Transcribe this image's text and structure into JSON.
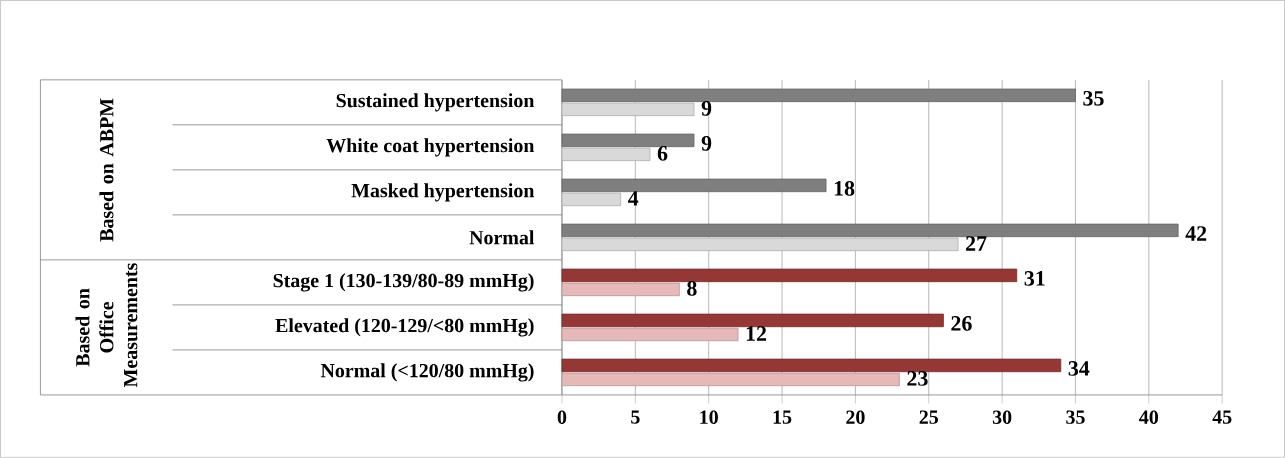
{
  "chart_data": {
    "type": "bar",
    "orientation": "horizontal",
    "categories": [
      "Sustained hypertension",
      "White coat hypertension",
      "Masked hypertension",
      "Normal",
      "Stage 1 (130-139/80-89 mmHg)",
      "Elevated (120-129/<80 mmHg)",
      "Normal (<120/80 mmHg)"
    ],
    "series": [
      {
        "colors": [
          "#7f7f7f",
          "#7f7f7f",
          "#7f7f7f",
          "#7f7f7f",
          "#953735",
          "#953735",
          "#953735"
        ],
        "values": [
          35,
          9,
          18,
          42,
          31,
          26,
          34
        ]
      },
      {
        "colors": [
          "#d9d9d9",
          "#d9d9d9",
          "#d9d9d9",
          "#d9d9d9",
          "#e6b9b8",
          "#e6b9b8",
          "#e6b9b8"
        ],
        "values": [
          9,
          6,
          4,
          27,
          8,
          12,
          23
        ]
      }
    ],
    "xlim": [
      0,
      45
    ],
    "xticks": [
      0,
      5,
      10,
      15,
      20,
      25,
      30,
      35,
      40,
      45
    ],
    "grid": "x",
    "data_labels": true,
    "annotations": [
      "Based on ABPM",
      "Based on Office Measurements"
    ]
  }
}
